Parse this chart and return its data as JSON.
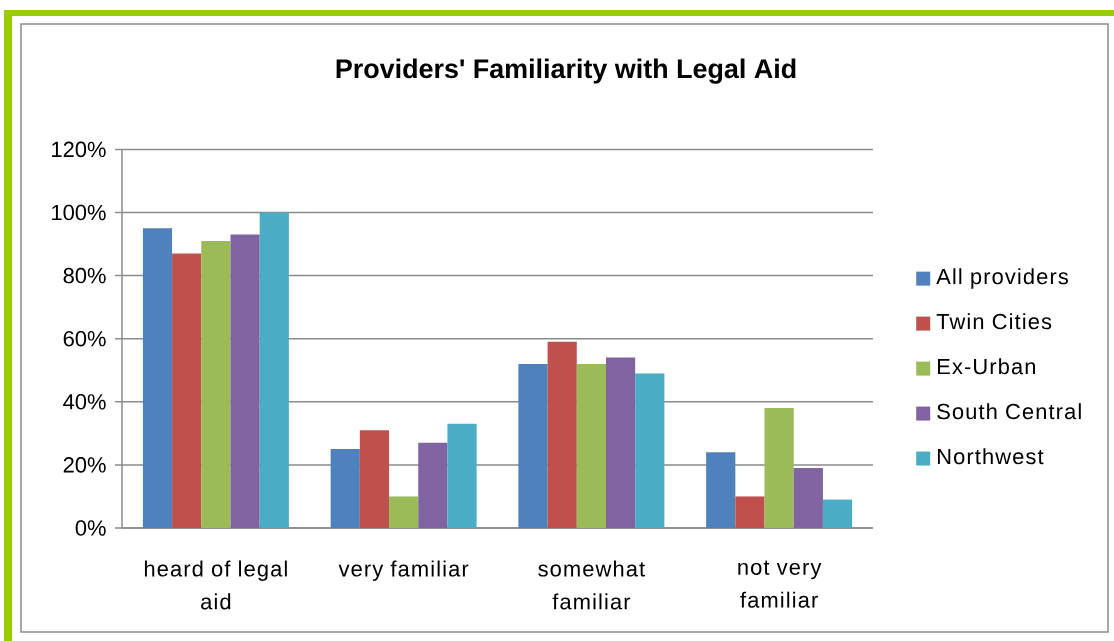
{
  "chart_data": {
    "type": "bar",
    "title": "Providers' Familiarity with Legal Aid",
    "categories": [
      "heard of legal aid",
      "very familiar",
      "somewhat familiar",
      "not very familiar"
    ],
    "series": [
      {
        "name": "All providers",
        "color": "#4f81bd",
        "values": [
          95,
          25,
          52,
          24
        ]
      },
      {
        "name": "Twin Cities",
        "color": "#c0504d",
        "values": [
          87,
          31,
          59,
          10
        ]
      },
      {
        "name": "Ex-Urban",
        "color": "#9bbb59",
        "values": [
          91,
          10,
          52,
          38
        ]
      },
      {
        "name": "South Central",
        "color": "#8064a2",
        "values": [
          93,
          27,
          54,
          19
        ]
      },
      {
        "name": "Northwest",
        "color": "#4bacc6",
        "values": [
          100,
          33,
          49,
          9
        ]
      }
    ],
    "ylim": [
      0,
      120
    ],
    "yticks": [
      {
        "value": 0,
        "label": "0%"
      },
      {
        "value": 20,
        "label": "20%"
      },
      {
        "value": 40,
        "label": "40%"
      },
      {
        "value": 60,
        "label": "60%"
      },
      {
        "value": 80,
        "label": "80%"
      },
      {
        "value": 100,
        "label": "100%"
      },
      {
        "value": 120,
        "label": "120%"
      }
    ],
    "grid": "y",
    "legend": "right"
  }
}
